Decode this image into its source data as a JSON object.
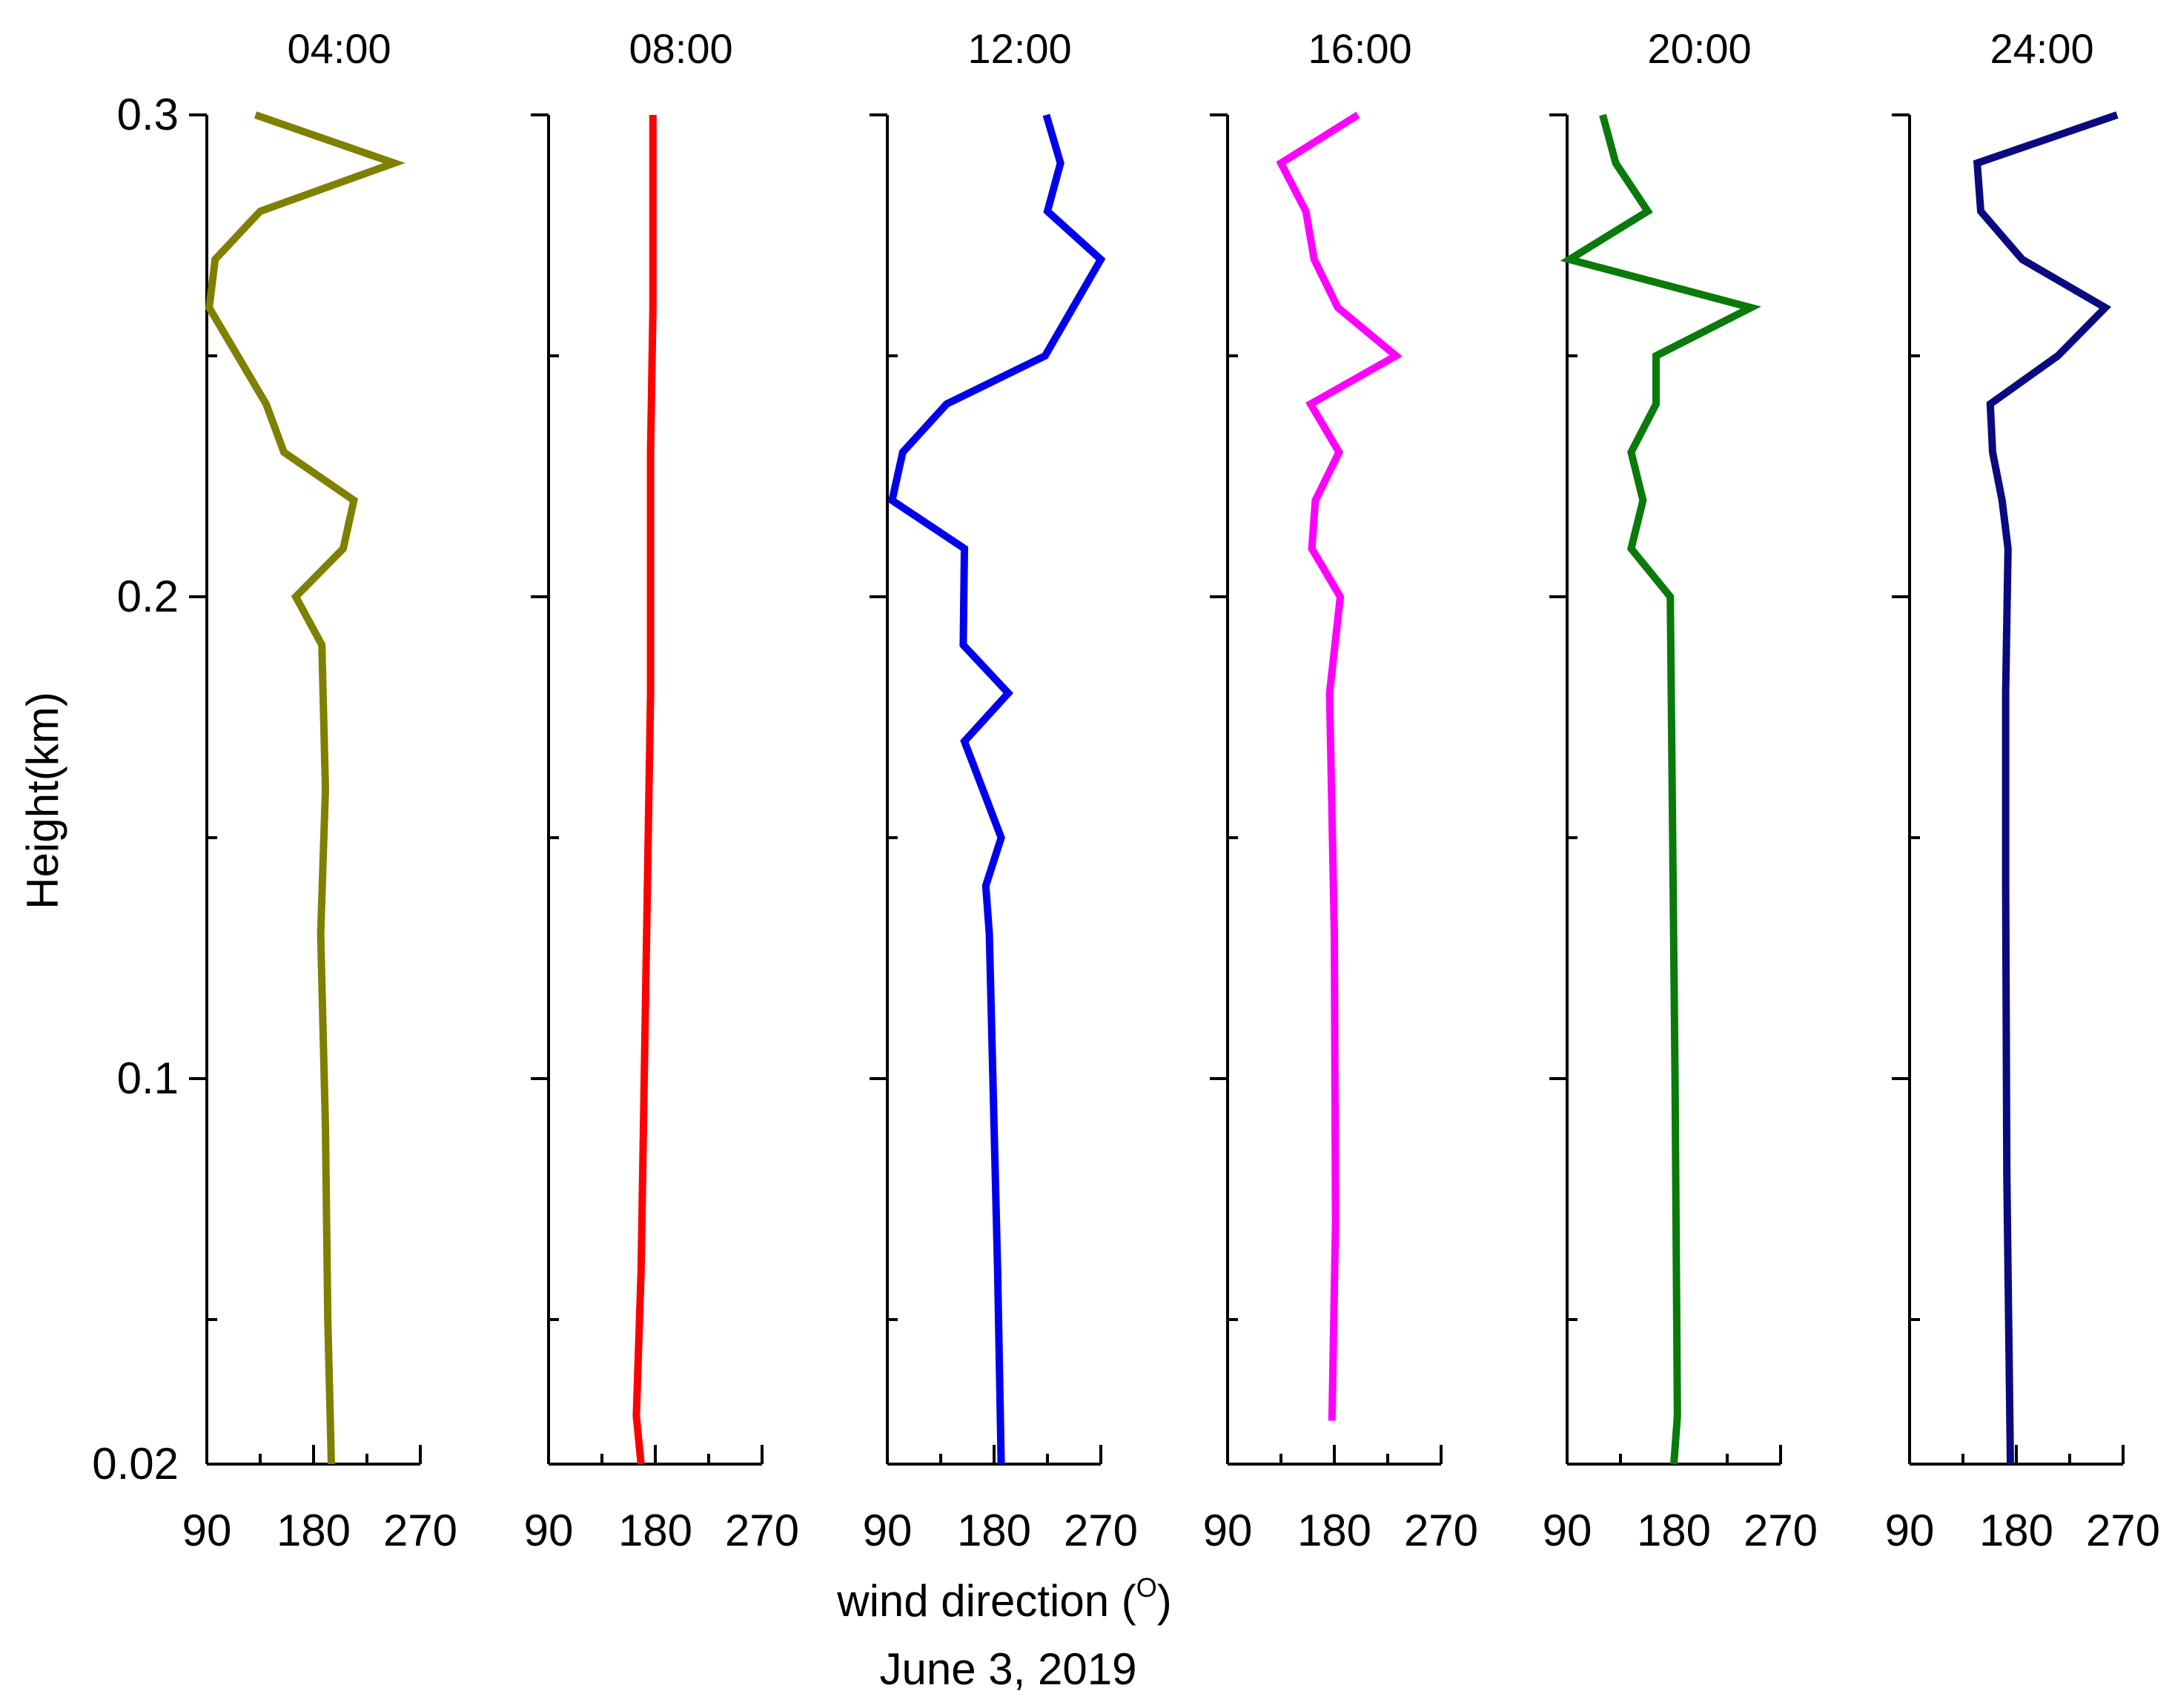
{
  "chart_data": {
    "type": "line",
    "ylabel": "Height(km)",
    "xlabel": "wind direction (",
    "xlabel_superscript": "O",
    "xlabel_close": ")",
    "date_label": "June 3, 2019",
    "ylim": [
      0.02,
      0.3
    ],
    "yticks": [
      0.02,
      0.1,
      0.2,
      0.3
    ],
    "yticks_labels": [
      "0.02",
      "0.1",
      "0.2",
      "0.3"
    ],
    "xlim": [
      90,
      270
    ],
    "xticks": [
      90,
      180,
      270
    ],
    "xticks_labels": [
      "90",
      "180",
      "270"
    ],
    "panels": [
      {
        "title": "04:00",
        "color": "#7f7f00",
        "points": [
          [
            195,
            0.02
          ],
          [
            192,
            0.05
          ],
          [
            190,
            0.09
          ],
          [
            186,
            0.13
          ],
          [
            190,
            0.16
          ],
          [
            187,
            0.19
          ],
          [
            165,
            0.2
          ],
          [
            205,
            0.21
          ],
          [
            214,
            0.22
          ],
          [
            155,
            0.23
          ],
          [
            140,
            0.24
          ],
          [
            92,
            0.26
          ],
          [
            97,
            0.27
          ],
          [
            135,
            0.28
          ],
          [
            248,
            0.29
          ],
          [
            131,
            0.3
          ]
        ]
      },
      {
        "title": "08:00",
        "color": "#ff0000",
        "points": [
          [
            168,
            0.02
          ],
          [
            164,
            0.03
          ],
          [
            168,
            0.06
          ],
          [
            172,
            0.12
          ],
          [
            176,
            0.18
          ],
          [
            176,
            0.23
          ],
          [
            178,
            0.26
          ],
          [
            178,
            0.3
          ]
        ]
      },
      {
        "title": "12:00",
        "color": "#0000ee",
        "points": [
          [
            186,
            0.02
          ],
          [
            183,
            0.06
          ],
          [
            179,
            0.1
          ],
          [
            176,
            0.13
          ],
          [
            173,
            0.14
          ],
          [
            186,
            0.15
          ],
          [
            155,
            0.17
          ],
          [
            192,
            0.18
          ],
          [
            154,
            0.19
          ],
          [
            155,
            0.21
          ],
          [
            94,
            0.22
          ],
          [
            103,
            0.23
          ],
          [
            140,
            0.24
          ],
          [
            223,
            0.25
          ],
          [
            270,
            0.27
          ],
          [
            225,
            0.28
          ],
          [
            236,
            0.29
          ],
          [
            224,
            0.3
          ]
        ]
      },
      {
        "title": "16:00",
        "color": "#ff00ff",
        "points": [
          [
            178,
            0.029
          ],
          [
            181,
            0.07
          ],
          [
            180,
            0.13
          ],
          [
            176,
            0.18
          ],
          [
            185,
            0.2
          ],
          [
            161,
            0.21
          ],
          [
            164,
            0.22
          ],
          [
            184,
            0.23
          ],
          [
            160,
            0.24
          ],
          [
            232,
            0.25
          ],
          [
            183,
            0.26
          ],
          [
            163,
            0.27
          ],
          [
            156,
            0.28
          ],
          [
            135,
            0.29
          ],
          [
            200,
            0.3
          ]
        ]
      },
      {
        "title": "20:00",
        "color": "#0a7a0a",
        "points": [
          [
            180,
            0.02
          ],
          [
            183,
            0.03
          ],
          [
            181,
            0.1
          ],
          [
            177,
            0.2
          ],
          [
            144,
            0.21
          ],
          [
            154,
            0.22
          ],
          [
            144,
            0.23
          ],
          [
            165,
            0.24
          ],
          [
            165,
            0.25
          ],
          [
            245,
            0.26
          ],
          [
            92,
            0.27
          ],
          [
            158,
            0.28
          ],
          [
            131,
            0.29
          ],
          [
            120,
            0.3
          ]
        ]
      },
      {
        "title": "24:00",
        "color": "#0a0a80",
        "points": [
          [
            175,
            0.02
          ],
          [
            174,
            0.04
          ],
          [
            172,
            0.08
          ],
          [
            171,
            0.14
          ],
          [
            171,
            0.18
          ],
          [
            173,
            0.21
          ],
          [
            168,
            0.22
          ],
          [
            160,
            0.23
          ],
          [
            158,
            0.24
          ],
          [
            215,
            0.25
          ],
          [
            255,
            0.26
          ],
          [
            185,
            0.27
          ],
          [
            150,
            0.28
          ],
          [
            147,
            0.29
          ],
          [
            265,
            0.3
          ]
        ]
      }
    ]
  }
}
